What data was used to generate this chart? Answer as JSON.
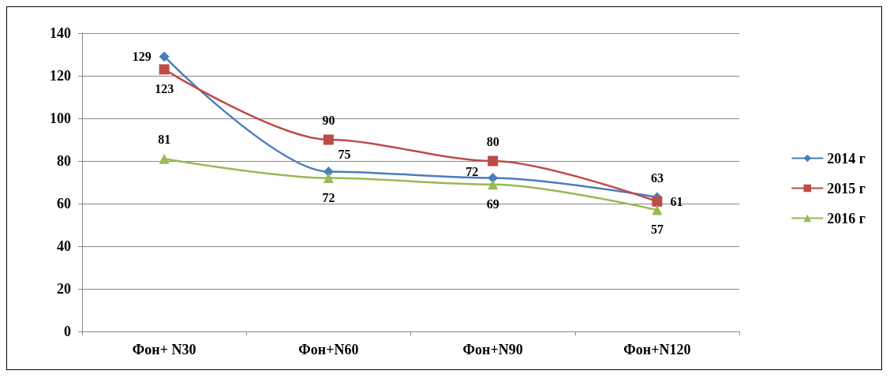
{
  "chart_data": {
    "type": "line",
    "categories": [
      "Фон+ N30",
      "Фон+N60",
      "Фон+N90",
      "Фон+N120"
    ],
    "series": [
      {
        "name": "2014 г",
        "color": "#4a7ebb",
        "marker": "diamond",
        "values": [
          129,
          75,
          72,
          63
        ]
      },
      {
        "name": "2015 г",
        "color": "#be4b48",
        "marker": "square",
        "values": [
          123,
          90,
          80,
          61
        ]
      },
      {
        "name": "2016 г",
        "color": "#98b954",
        "marker": "triangle",
        "values": [
          81,
          72,
          69,
          57
        ]
      }
    ],
    "ylim": [
      0,
      140
    ],
    "yticks": [
      0,
      20,
      40,
      60,
      80,
      100,
      120,
      140
    ],
    "grid": "y",
    "legend": "right",
    "data_labels": true
  }
}
